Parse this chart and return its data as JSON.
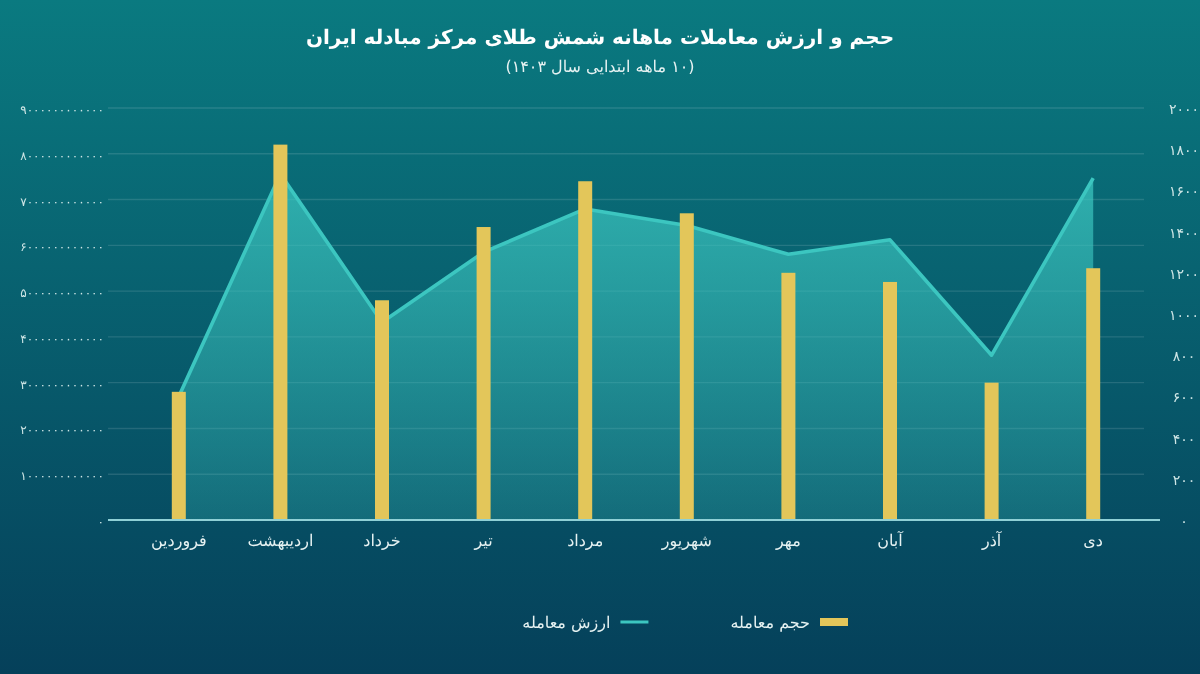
{
  "chart_data": {
    "type": "bar",
    "title": "حجم و ارزش معاملات ماهانه شمش طلای مرکز مبادله ایران",
    "subtitle": "(۱۰ ماهه ابتدایی سال ۱۴۰۳)",
    "categories": [
      "فروردین",
      "اردیبهشت",
      "خرداد",
      "تیر",
      "مرداد",
      "شهریور",
      "مهر",
      "آبان",
      "آذر",
      "دی"
    ],
    "series": [
      {
        "name": "حجم معامله",
        "color": "#e3c65a",
        "values": [
          2800000000000.0,
          8200000000000.0,
          4800000000000.0,
          6400000000000.0,
          7400000000000.0,
          6700000000000.0,
          5400000000000.0,
          5200000000000.0,
          3000000000000.0,
          5500000000000.0
        ]
      },
      {
        "name": "ارزش معامله",
        "type": "area",
        "axis": "y2",
        "color": "#3cc6c0",
        "values": [
          600,
          1680,
          960,
          1300,
          1510,
          1430,
          1290,
          1360,
          800,
          1660
        ]
      }
    ],
    "ylim": [
      0,
      9000000000000.0
    ],
    "yticks": [
      {
        "value": 0,
        "label": "۰"
      },
      {
        "value": 1000000000000.0,
        "label": "۱۰۰۰۰۰۰۰۰۰۰۰۰"
      },
      {
        "value": 2000000000000.0,
        "label": "۲۰۰۰۰۰۰۰۰۰۰۰۰"
      },
      {
        "value": 3000000000000.0,
        "label": "۳۰۰۰۰۰۰۰۰۰۰۰۰"
      },
      {
        "value": 4000000000000.0,
        "label": "۴۰۰۰۰۰۰۰۰۰۰۰۰"
      },
      {
        "value": 5000000000000.0,
        "label": "۵۰۰۰۰۰۰۰۰۰۰۰۰"
      },
      {
        "value": 6000000000000.0,
        "label": "۶۰۰۰۰۰۰۰۰۰۰۰۰"
      },
      {
        "value": 7000000000000.0,
        "label": "۷۰۰۰۰۰۰۰۰۰۰۰۰"
      },
      {
        "value": 8000000000000.0,
        "label": "۸۰۰۰۰۰۰۰۰۰۰۰۰"
      },
      {
        "value": 9000000000000.0,
        "label": "۹۰۰۰۰۰۰۰۰۰۰۰۰"
      }
    ],
    "y2lim": [
      0,
      2000
    ],
    "y2ticks": [
      {
        "value": 0,
        "label": "۰"
      },
      {
        "value": 200,
        "label": "۲۰۰"
      },
      {
        "value": 400,
        "label": "۴۰۰"
      },
      {
        "value": 600,
        "label": "۶۰۰"
      },
      {
        "value": 800,
        "label": "۸۰۰"
      },
      {
        "value": 1000,
        "label": "۱۰۰۰"
      },
      {
        "value": 1200,
        "label": "۱۲۰۰"
      },
      {
        "value": 1400,
        "label": "۱۴۰۰"
      },
      {
        "value": 1600,
        "label": "۱۶۰۰"
      },
      {
        "value": 1800,
        "label": "۱۸۰۰"
      },
      {
        "value": 2000,
        "label": "۲۰۰۰"
      }
    ],
    "grid": "y",
    "legend": "bottom"
  }
}
